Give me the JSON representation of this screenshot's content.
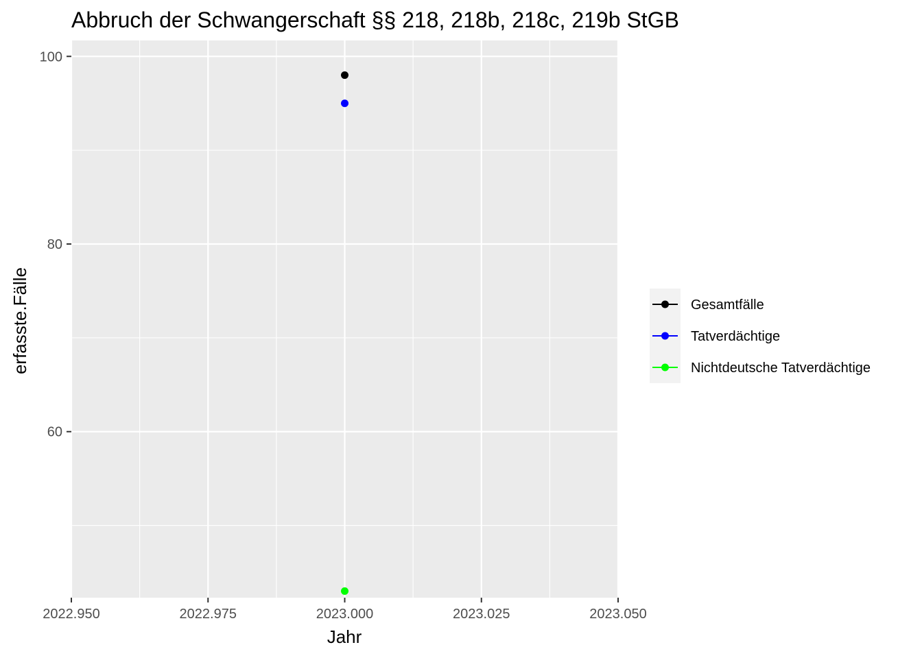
{
  "chart_data": {
    "type": "scatter",
    "title": "Abbruch der Schwangerschaft §§ 218, 218b, 218c, 219b StGB",
    "xlabel": "Jahr",
    "ylabel": "erfasste.Fälle",
    "xlim": [
      2022.95,
      2023.05
    ],
    "ylim": [
      42.3,
      101.7
    ],
    "x_ticks": [
      2022.95,
      2022.975,
      2023.0,
      2023.025,
      2023.05
    ],
    "x_tick_labels": [
      "2022.950",
      "2022.975",
      "2023.000",
      "2023.025",
      "2023.050"
    ],
    "y_ticks": [
      60,
      80,
      100
    ],
    "y_tick_labels": [
      "60",
      "80",
      "100"
    ],
    "grid": true,
    "background": "#ebebeb",
    "legend_position": "right",
    "series": [
      {
        "name": "Gesamtfälle",
        "color": "#000000",
        "x": [
          2023.0
        ],
        "y": [
          98
        ]
      },
      {
        "name": "Tatverdächtige",
        "color": "#0000ff",
        "x": [
          2023.0
        ],
        "y": [
          95
        ]
      },
      {
        "name": "Nichtdeutsche Tatverdächtige",
        "color": "#00ff00",
        "x": [
          2023.0
        ],
        "y": [
          43
        ]
      }
    ]
  }
}
